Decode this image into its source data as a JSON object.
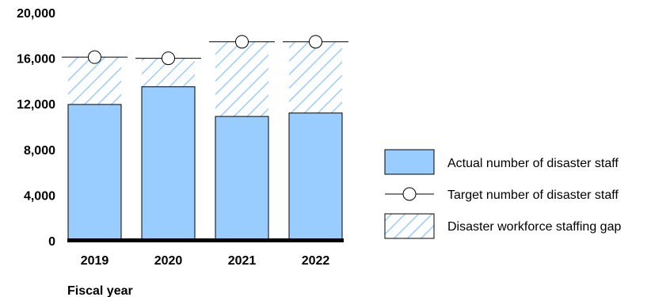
{
  "chart_data": {
    "type": "bar",
    "title": "",
    "xlabel": "Fiscal year",
    "ylabel": "",
    "ylim": [
      0,
      20000
    ],
    "yticks": [
      "0",
      "4,000",
      "8,000",
      "12,000",
      "16,000",
      "20,000"
    ],
    "ytick_values": [
      0,
      4000,
      8000,
      12000,
      16000,
      20000
    ],
    "categories": [
      "2019",
      "2020",
      "2021",
      "2022"
    ],
    "series": [
      {
        "name": "Actual number of disaster staff",
        "values": [
          11950,
          13500,
          10900,
          11200
        ]
      },
      {
        "name": "Target number of disaster staff",
        "values": [
          16100,
          16000,
          17450,
          17450
        ]
      },
      {
        "name": "Disaster workforce staffing gap",
        "values": [
          4150,
          2500,
          6550,
          6250
        ]
      }
    ],
    "legend_position": "right",
    "grid": false,
    "colors": {
      "actual": "#99ccff",
      "hatch": "#99ccff",
      "outline": "#000000"
    }
  }
}
